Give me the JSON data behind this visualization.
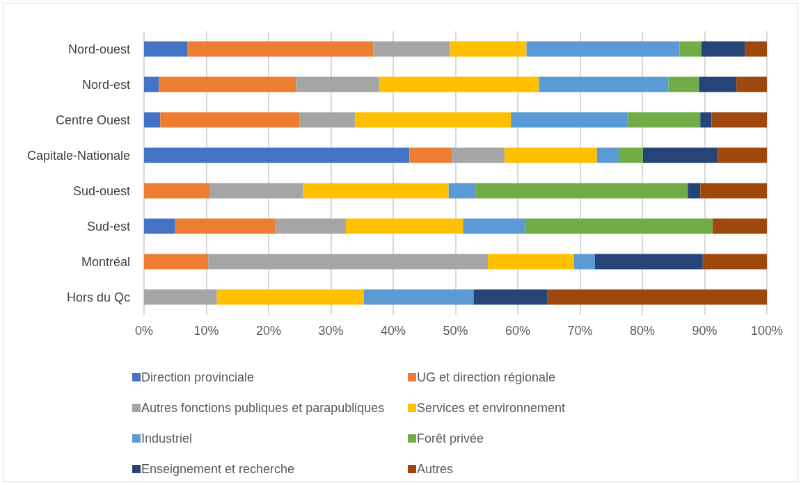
{
  "chart_data": {
    "type": "bar",
    "orientation": "horizontal",
    "stacked": true,
    "categories": [
      "Nord-ouest",
      "Nord-est",
      "Centre Ouest",
      "Capitale-Nationale",
      "Sud-ouest",
      "Sud-est",
      "Montréal",
      "Hors du Qc"
    ],
    "series": [
      {
        "name": "Direction provinciale",
        "color": "#4472c4",
        "values": [
          7,
          2.4,
          2.6,
          42.6,
          0,
          5,
          0,
          0
        ]
      },
      {
        "name": "UG et direction régionale",
        "color": "#ed7d31",
        "values": [
          29.8,
          22,
          22.4,
          6.8,
          10.5,
          16.1,
          10.3,
          0
        ]
      },
      {
        "name": "Autres fonctions publiques et parapubliques",
        "color": "#a5a5a5",
        "values": [
          12.3,
          13.4,
          8.9,
          8.5,
          15,
          11.3,
          44.9,
          11.7
        ]
      },
      {
        "name": "Services et environnement",
        "color": "#ffc000",
        "values": [
          12.3,
          25.6,
          25,
          14.8,
          23.4,
          18.8,
          13.8,
          23.6
        ]
      },
      {
        "name": "Industriel",
        "color": "#5b9bd5",
        "values": [
          24.6,
          20.8,
          18.8,
          3.5,
          4.3,
          10,
          3.4,
          17.6
        ]
      },
      {
        "name": "Forêt privée",
        "color": "#70ad47",
        "values": [
          3.5,
          4.9,
          11.6,
          3.9,
          34.1,
          30.1,
          0,
          0
        ]
      },
      {
        "name": "Enseignement et recherche",
        "color": "#264478",
        "values": [
          7,
          6,
          1.8,
          12,
          2,
          0,
          17.3,
          11.8
        ]
      },
      {
        "name": "Autres",
        "color": "#9e480e",
        "values": [
          3.5,
          4.9,
          8.9,
          7.9,
          10.7,
          8.7,
          10.3,
          35.3
        ]
      }
    ],
    "xlim": [
      0,
      100
    ],
    "xticks": [
      {
        "value": 0,
        "label": "0%"
      },
      {
        "value": 10,
        "label": "10%"
      },
      {
        "value": 20,
        "label": "20%"
      },
      {
        "value": 30,
        "label": "30%"
      },
      {
        "value": 40,
        "label": "40%"
      },
      {
        "value": 50,
        "label": "50%"
      },
      {
        "value": 60,
        "label": "60%"
      },
      {
        "value": 70,
        "label": "70%"
      },
      {
        "value": 80,
        "label": "80%"
      },
      {
        "value": 90,
        "label": "90%"
      },
      {
        "value": 100,
        "label": "100%"
      }
    ],
    "grid": "x",
    "legend": "bottom"
  }
}
